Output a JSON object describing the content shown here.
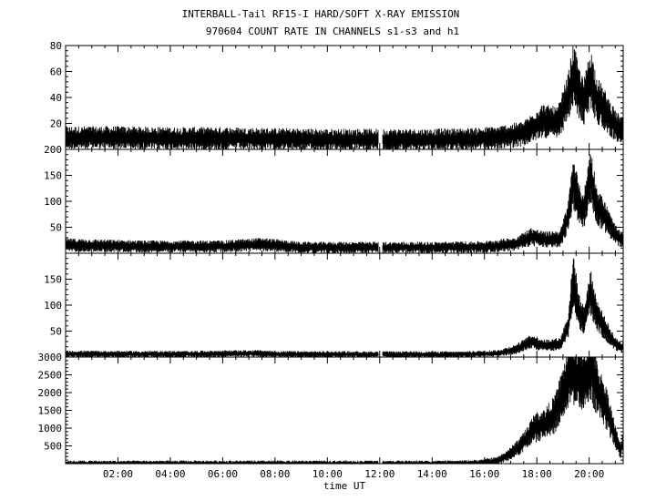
{
  "title_line1": "INTERBALL-Tail RF15-I HARD/SOFT X-RAY EMISSION",
  "title_line2": "970604  COUNT RATE IN CHANNELS s1-s3 and h1",
  "chart_data": {
    "type": "line",
    "xlabel": "time UT",
    "x_range_hours": [
      0.0,
      21.3
    ],
    "x_tick_labels": [
      "02:00",
      "04:00",
      "06:00",
      "08:00",
      "10:00",
      "12:00",
      "14:00",
      "16:00",
      "18:00",
      "20:00"
    ],
    "x_tick_hours": [
      2,
      4,
      6,
      8,
      10,
      12,
      14,
      16,
      18,
      20
    ],
    "data_gap_hours": [
      11.95,
      12.1
    ],
    "panels": [
      {
        "channel": "s1",
        "ylim": [
          0,
          80
        ],
        "y_ticks": [
          20,
          40,
          60,
          80
        ],
        "profile": [
          [
            0,
            9
          ],
          [
            2,
            9
          ],
          [
            4,
            8.5
          ],
          [
            6,
            8.5
          ],
          [
            8,
            8
          ],
          [
            10,
            7.5
          ],
          [
            12,
            7.5
          ],
          [
            14,
            7.5
          ],
          [
            15.5,
            8
          ],
          [
            16.5,
            9
          ],
          [
            17.5,
            12
          ],
          [
            18.2,
            22
          ],
          [
            18.8,
            20
          ],
          [
            19.2,
            40
          ],
          [
            19.4,
            58
          ],
          [
            19.6,
            44
          ],
          [
            19.8,
            36
          ],
          [
            20.05,
            55
          ],
          [
            20.3,
            38
          ],
          [
            20.6,
            30
          ],
          [
            21.0,
            18
          ],
          [
            21.3,
            14
          ]
        ],
        "noise": 4
      },
      {
        "channel": "s2",
        "ylim": [
          0,
          200
        ],
        "y_ticks": [
          50,
          100,
          150,
          200
        ],
        "profile": [
          [
            0,
            16
          ],
          [
            3,
            13
          ],
          [
            6,
            13
          ],
          [
            7.5,
            17
          ],
          [
            8.0,
            15
          ],
          [
            9,
            11
          ],
          [
            12,
            11
          ],
          [
            14,
            11
          ],
          [
            16,
            12
          ],
          [
            17.2,
            18
          ],
          [
            17.8,
            32
          ],
          [
            18.3,
            26
          ],
          [
            18.9,
            28
          ],
          [
            19.2,
            70
          ],
          [
            19.4,
            140
          ],
          [
            19.6,
            95
          ],
          [
            19.8,
            82
          ],
          [
            20.05,
            150
          ],
          [
            20.3,
            90
          ],
          [
            20.6,
            70
          ],
          [
            21.0,
            35
          ],
          [
            21.3,
            22
          ]
        ],
        "noise": 5
      },
      {
        "channel": "s3",
        "ylim": [
          0,
          200
        ],
        "y_ticks": [
          50,
          100,
          150
        ],
        "profile": [
          [
            0,
            6
          ],
          [
            4,
            5.5
          ],
          [
            7.5,
            7
          ],
          [
            8,
            5.5
          ],
          [
            12,
            5
          ],
          [
            15,
            5
          ],
          [
            16.5,
            7
          ],
          [
            17.2,
            15
          ],
          [
            17.8,
            30
          ],
          [
            18.3,
            22
          ],
          [
            18.9,
            25
          ],
          [
            19.2,
            60
          ],
          [
            19.4,
            150
          ],
          [
            19.6,
            90
          ],
          [
            19.8,
            70
          ],
          [
            20.05,
            125
          ],
          [
            20.3,
            80
          ],
          [
            20.6,
            55
          ],
          [
            21.0,
            25
          ],
          [
            21.3,
            18
          ]
        ],
        "noise": 3
      },
      {
        "channel": "h1",
        "ylim": [
          0,
          3000
        ],
        "y_ticks": [
          500,
          1000,
          1500,
          2000,
          2500,
          3000
        ],
        "profile": [
          [
            0,
            0
          ],
          [
            15.0,
            0
          ],
          [
            15.8,
            20
          ],
          [
            16.5,
            80
          ],
          [
            17.0,
            280
          ],
          [
            17.5,
            600
          ],
          [
            17.9,
            1000
          ],
          [
            18.3,
            1100
          ],
          [
            18.7,
            1400
          ],
          [
            19.0,
            2000
          ],
          [
            19.3,
            2650
          ],
          [
            19.6,
            2350
          ],
          [
            19.9,
            2450
          ],
          [
            20.05,
            2750
          ],
          [
            20.3,
            2100
          ],
          [
            20.7,
            1500
          ],
          [
            21.0,
            750
          ],
          [
            21.2,
            350
          ],
          [
            21.3,
            700
          ]
        ],
        "noise": 60
      }
    ]
  }
}
